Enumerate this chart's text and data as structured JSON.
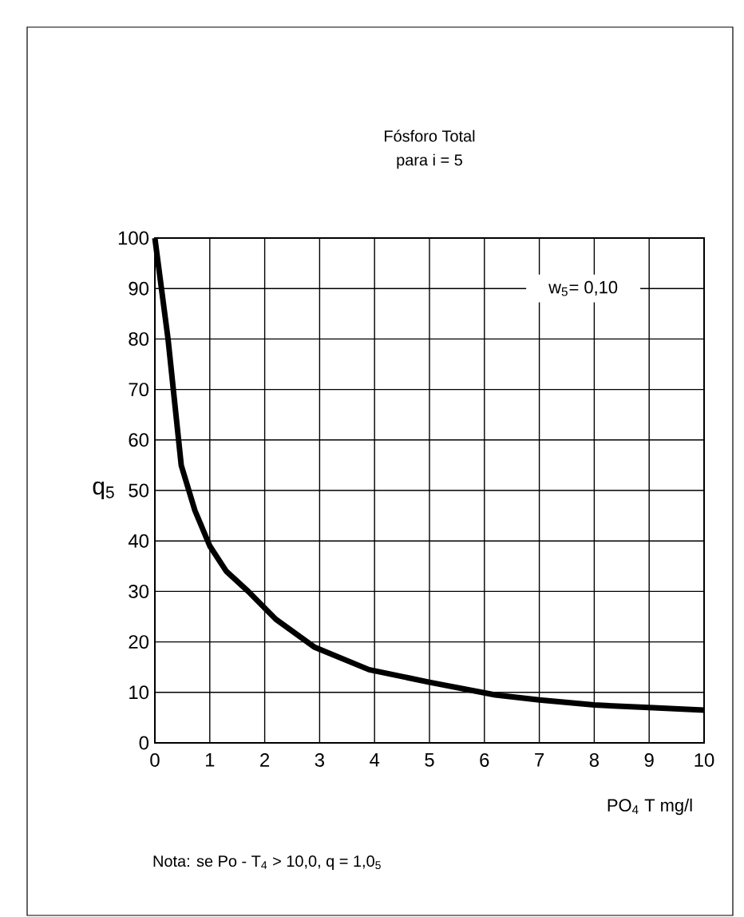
{
  "chart_data": {
    "type": "line",
    "title": "Fósforo Total",
    "subtitle": "para i = 5",
    "xlabel": "PO$_{4}$ T  mg/l",
    "ylabel": "q$_{5}$",
    "x": [
      0,
      0.24,
      0.48,
      0.73,
      1.0,
      1.3,
      1.7,
      2.2,
      2.9,
      3.9,
      5,
      6.2,
      7,
      8,
      9,
      10
    ],
    "series": [
      {
        "color": "#000000",
        "values": [
          100,
          80,
          55,
          46,
          39,
          34,
          30,
          24.5,
          19,
          14.5,
          12,
          9.5,
          8.5,
          7.5,
          7,
          6.5
        ]
      }
    ],
    "xlim": [
      0,
      10
    ],
    "ylim": [
      0,
      100
    ],
    "xticks": [
      0,
      1,
      2,
      3,
      4,
      5,
      6,
      7,
      8,
      9,
      10
    ],
    "yticks": [
      0,
      10,
      20,
      30,
      40,
      50,
      60,
      70,
      80,
      90,
      100
    ],
    "grid": true,
    "marker": "none",
    "line_style": "solid",
    "annotations": [
      "w$_{5}$= 0,10",
      "Nota: se Po - T$_{4}$ > 10,0,  q = 1,0$_{5}$"
    ]
  }
}
